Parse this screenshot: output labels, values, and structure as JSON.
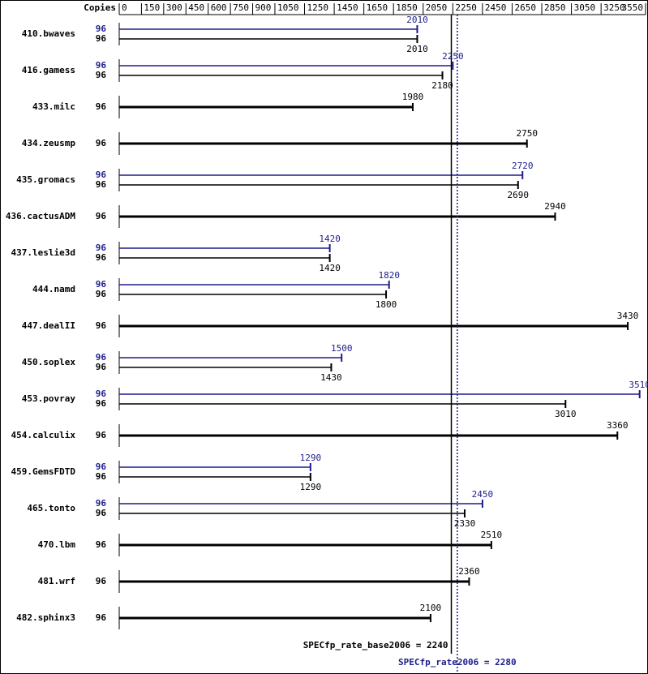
{
  "chart_data": {
    "type": "bar",
    "orientation": "horizontal",
    "copies_label": "Copies",
    "categories": [
      "410.bwaves",
      "416.gamess",
      "433.milc",
      "434.zeusmp",
      "435.gromacs",
      "436.cactusADM",
      "437.leslie3d",
      "444.namd",
      "447.dealII",
      "450.soplex",
      "453.povray",
      "454.calculix",
      "459.GemsFDTD",
      "465.tonto",
      "470.lbm",
      "481.wrf",
      "482.sphinx3"
    ],
    "series": [
      {
        "color": "#1c1c8c",
        "copies": [
          96,
          96,
          null,
          null,
          96,
          null,
          96,
          96,
          null,
          96,
          96,
          null,
          96,
          96,
          null,
          null,
          null
        ],
        "values": [
          2010,
          2250,
          null,
          null,
          2720,
          null,
          1420,
          1820,
          null,
          1500,
          3510,
          null,
          1290,
          2450,
          null,
          null,
          null
        ]
      },
      {
        "color": "#000000",
        "copies": [
          96,
          96,
          96,
          96,
          96,
          96,
          96,
          96,
          96,
          96,
          96,
          96,
          96,
          96,
          96,
          96,
          96
        ],
        "values": [
          2010,
          2180,
          1980,
          2750,
          2690,
          2940,
          1420,
          1800,
          3430,
          1430,
          3010,
          3360,
          1290,
          2330,
          2510,
          2360,
          2100
        ]
      }
    ],
    "xlim": [
      0,
      3550
    ],
    "xticks": [
      0,
      150,
      300,
      450,
      600,
      750,
      900,
      1050,
      1250,
      1450,
      1650,
      1850,
      2050,
      2250,
      2450,
      2650,
      2850,
      3050,
      3250,
      3550
    ],
    "reference_lines": [
      {
        "label": "SPECfp_rate_base2006 = 2240",
        "value": 2240,
        "color": "#000000",
        "dashed": false
      },
      {
        "label": "SPECfp_rate2006 = 2280",
        "value": 2280,
        "color": "#1c1c8c",
        "dashed": true
      }
    ]
  }
}
